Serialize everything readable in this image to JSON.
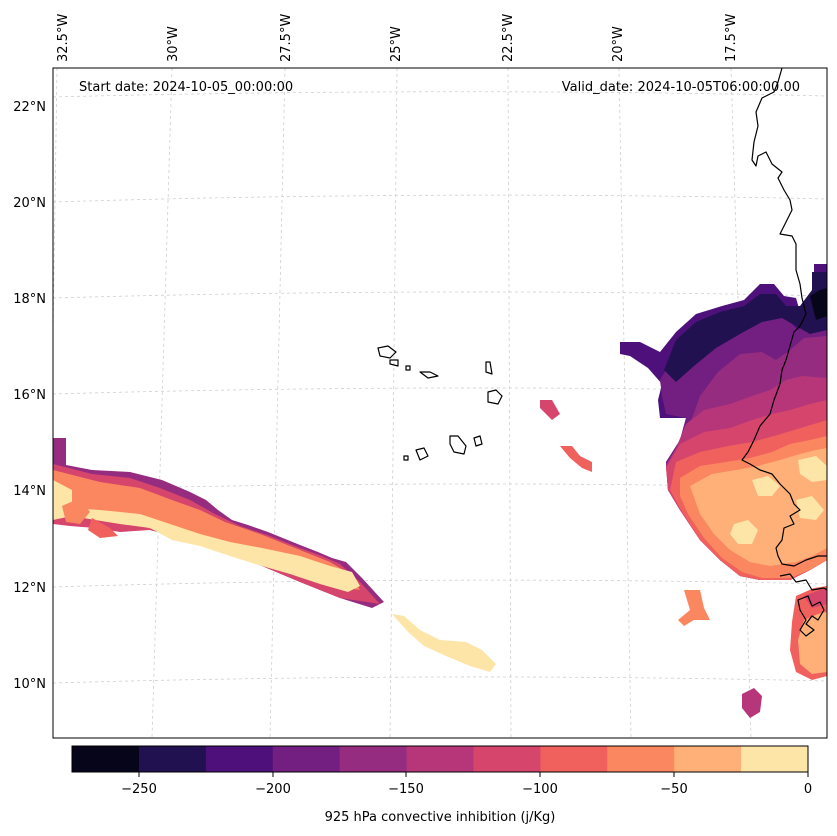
{
  "header": {
    "start_label": "Start date: 2024-10-05_00:00:00",
    "valid_label": "Valid_date: 2024-10-05T06:00:00.00"
  },
  "map": {
    "lon_labels": [
      "32.5°W",
      "30°W",
      "27.5°W",
      "25°W",
      "22.5°W",
      "20°W",
      "17.5°W"
    ],
    "lat_labels": [
      "22°N",
      "20°N",
      "18°N",
      "16°N",
      "14°N",
      "12°N",
      "10°N"
    ],
    "gridlines": "dashed-gray",
    "projection": "conic"
  },
  "colorbar": {
    "label": "925 hPa convective inhibition (j/Kg)",
    "ticks": [
      "−250",
      "−200",
      "−150",
      "−100",
      "−50",
      "0"
    ],
    "levels": [
      -275,
      -250,
      -225,
      -200,
      -175,
      -150,
      -125,
      -100,
      -75,
      -50,
      -25,
      0
    ],
    "colors": [
      "#06051a",
      "#221150",
      "#4e117b",
      "#721f81",
      "#952c80",
      "#b63679",
      "#d6456c",
      "#f0605d",
      "#fb8761",
      "#feb078",
      "#fde5a7"
    ],
    "colormap": "magma"
  },
  "colors": {
    "gridline": "#cfcfcf",
    "coastline": "#000000",
    "frame": "#000000"
  }
}
